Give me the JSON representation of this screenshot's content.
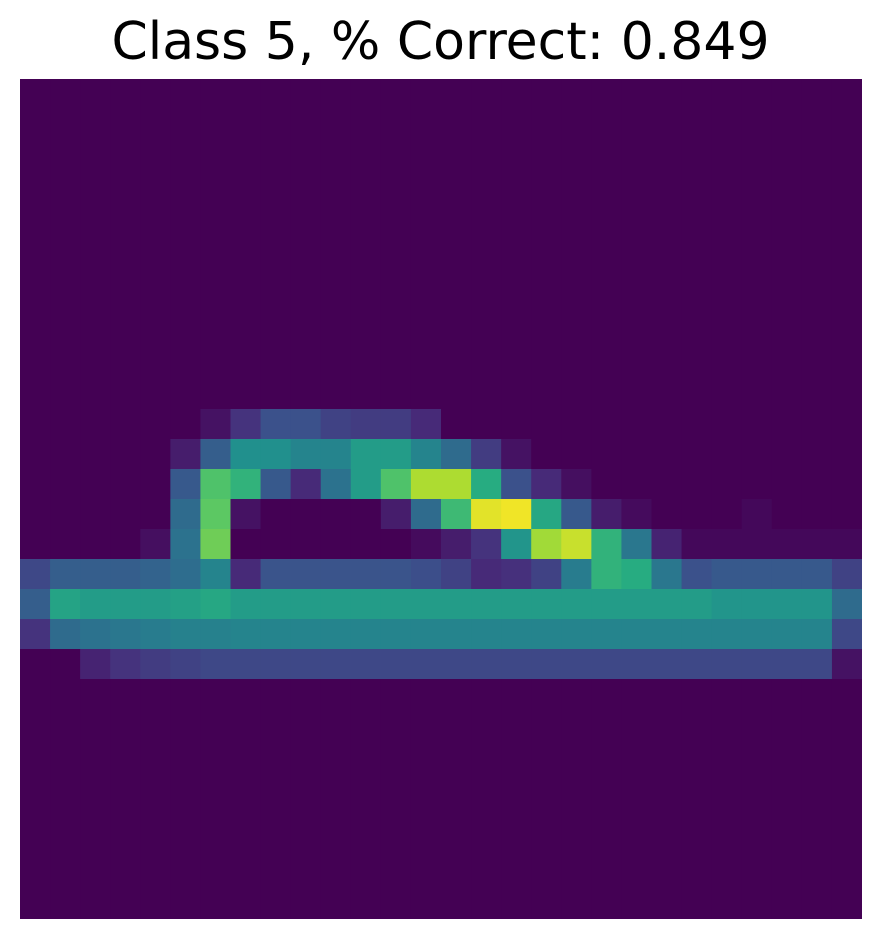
{
  "title": "Class 5, % Correct: 0.849",
  "chart_data": {
    "type": "heatmap",
    "title": "Class 5, % Correct: 0.849",
    "colormap": "viridis",
    "axes_visible": false,
    "rows": 28,
    "cols": 28,
    "value_range": [
      0,
      1
    ],
    "values": [
      [
        0,
        0,
        0,
        0,
        0,
        0,
        0,
        0,
        0,
        0,
        0,
        0,
        0,
        0,
        0,
        0,
        0,
        0,
        0,
        0,
        0,
        0,
        0,
        0,
        0,
        0,
        0,
        0
      ],
      [
        0,
        0,
        0,
        0,
        0,
        0,
        0,
        0,
        0,
        0,
        0,
        0,
        0,
        0,
        0,
        0,
        0,
        0,
        0,
        0,
        0,
        0,
        0,
        0,
        0,
        0,
        0,
        0
      ],
      [
        0,
        0,
        0,
        0,
        0,
        0,
        0,
        0,
        0,
        0,
        0,
        0,
        0,
        0,
        0,
        0,
        0,
        0,
        0,
        0,
        0,
        0,
        0,
        0,
        0,
        0,
        0,
        0
      ],
      [
        0,
        0,
        0,
        0,
        0,
        0,
        0,
        0,
        0,
        0,
        0,
        0,
        0,
        0,
        0,
        0,
        0,
        0,
        0,
        0,
        0,
        0,
        0,
        0,
        0,
        0,
        0,
        0
      ],
      [
        0,
        0,
        0,
        0,
        0,
        0,
        0,
        0,
        0,
        0,
        0,
        0,
        0,
        0,
        0,
        0,
        0,
        0,
        0,
        0,
        0,
        0,
        0,
        0,
        0,
        0,
        0,
        0
      ],
      [
        0,
        0,
        0,
        0,
        0,
        0,
        0,
        0,
        0,
        0,
        0,
        0,
        0,
        0,
        0,
        0,
        0,
        0,
        0,
        0,
        0,
        0,
        0,
        0,
        0,
        0,
        0,
        0
      ],
      [
        0,
        0,
        0,
        0,
        0,
        0,
        0,
        0,
        0,
        0,
        0,
        0,
        0,
        0,
        0,
        0,
        0,
        0,
        0,
        0,
        0,
        0,
        0,
        0,
        0,
        0,
        0,
        0
      ],
      [
        0,
        0,
        0,
        0,
        0,
        0,
        0,
        0,
        0,
        0,
        0,
        0,
        0,
        0,
        0,
        0,
        0,
        0,
        0,
        0,
        0,
        0,
        0,
        0,
        0,
        0,
        0,
        0
      ],
      [
        0,
        0,
        0,
        0,
        0,
        0,
        0,
        0,
        0,
        0,
        0,
        0,
        0,
        0,
        0,
        0,
        0,
        0,
        0,
        0,
        0,
        0,
        0,
        0,
        0,
        0,
        0,
        0
      ],
      [
        0,
        0,
        0,
        0,
        0,
        0,
        0,
        0,
        0,
        0,
        0,
        0,
        0,
        0,
        0,
        0,
        0,
        0,
        0,
        0,
        0,
        0,
        0,
        0,
        0,
        0,
        0,
        0
      ],
      [
        0,
        0,
        0,
        0,
        0,
        0,
        0,
        0,
        0,
        0,
        0,
        0,
        0,
        0,
        0,
        0,
        0,
        0,
        0,
        0,
        0,
        0,
        0,
        0,
        0,
        0,
        0,
        0
      ],
      [
        0,
        0,
        0,
        0,
        0,
        0,
        0.05,
        0.15,
        0.25,
        0.25,
        0.2,
        0.18,
        0.18,
        0.12,
        0,
        0,
        0,
        0,
        0,
        0,
        0,
        0,
        0,
        0,
        0,
        0,
        0,
        0
      ],
      [
        0,
        0,
        0,
        0,
        0,
        0.08,
        0.3,
        0.5,
        0.5,
        0.45,
        0.45,
        0.55,
        0.55,
        0.45,
        0.35,
        0.18,
        0.05,
        0,
        0,
        0,
        0,
        0,
        0,
        0,
        0,
        0,
        0,
        0
      ],
      [
        0,
        0,
        0,
        0,
        0,
        0.28,
        0.72,
        0.65,
        0.28,
        0.12,
        0.38,
        0.55,
        0.72,
        0.88,
        0.88,
        0.62,
        0.25,
        0.12,
        0.04,
        0,
        0,
        0,
        0,
        0,
        0,
        0,
        0,
        0
      ],
      [
        0,
        0,
        0,
        0,
        0,
        0.35,
        0.75,
        0.05,
        0,
        0,
        0,
        0,
        0.08,
        0.35,
        0.68,
        0.96,
        0.98,
        0.6,
        0.28,
        0.08,
        0.03,
        0,
        0,
        0,
        0.02,
        0,
        0,
        0
      ],
      [
        0,
        0,
        0,
        0,
        0.04,
        0.38,
        0.78,
        0,
        0,
        0,
        0,
        0,
        0,
        0.03,
        0.08,
        0.15,
        0.52,
        0.86,
        0.92,
        0.65,
        0.4,
        0.1,
        0.02,
        0.02,
        0.02,
        0.02,
        0.02,
        0.02
      ],
      [
        0.22,
        0.3,
        0.3,
        0.3,
        0.32,
        0.36,
        0.45,
        0.12,
        0.26,
        0.26,
        0.26,
        0.26,
        0.26,
        0.24,
        0.2,
        0.12,
        0.14,
        0.2,
        0.42,
        0.65,
        0.62,
        0.4,
        0.25,
        0.28,
        0.28,
        0.28,
        0.28,
        0.2
      ],
      [
        0.3,
        0.58,
        0.55,
        0.55,
        0.55,
        0.57,
        0.6,
        0.55,
        0.55,
        0.55,
        0.55,
        0.55,
        0.55,
        0.55,
        0.55,
        0.55,
        0.55,
        0.55,
        0.55,
        0.55,
        0.55,
        0.55,
        0.55,
        0.52,
        0.52,
        0.52,
        0.52,
        0.35
      ],
      [
        0.15,
        0.35,
        0.38,
        0.4,
        0.42,
        0.44,
        0.44,
        0.45,
        0.45,
        0.45,
        0.45,
        0.45,
        0.45,
        0.45,
        0.45,
        0.45,
        0.45,
        0.45,
        0.45,
        0.45,
        0.45,
        0.45,
        0.45,
        0.45,
        0.45,
        0.45,
        0.45,
        0.22
      ],
      [
        0,
        0,
        0.1,
        0.15,
        0.18,
        0.2,
        0.22,
        0.22,
        0.22,
        0.22,
        0.22,
        0.22,
        0.22,
        0.22,
        0.22,
        0.22,
        0.22,
        0.22,
        0.22,
        0.22,
        0.22,
        0.22,
        0.22,
        0.22,
        0.22,
        0.22,
        0.22,
        0.05
      ],
      [
        0,
        0,
        0,
        0,
        0,
        0,
        0,
        0,
        0,
        0,
        0,
        0,
        0,
        0,
        0,
        0,
        0,
        0,
        0,
        0,
        0,
        0,
        0,
        0,
        0,
        0,
        0,
        0
      ],
      [
        0,
        0,
        0,
        0,
        0,
        0,
        0,
        0,
        0,
        0,
        0,
        0,
        0,
        0,
        0,
        0,
        0,
        0,
        0,
        0,
        0,
        0,
        0,
        0,
        0,
        0,
        0,
        0
      ],
      [
        0,
        0,
        0,
        0,
        0,
        0,
        0,
        0,
        0,
        0,
        0,
        0,
        0,
        0,
        0,
        0,
        0,
        0,
        0,
        0,
        0,
        0,
        0,
        0,
        0,
        0,
        0,
        0
      ],
      [
        0,
        0,
        0,
        0,
        0,
        0,
        0,
        0,
        0,
        0,
        0,
        0,
        0,
        0,
        0,
        0,
        0,
        0,
        0,
        0,
        0,
        0,
        0,
        0,
        0,
        0,
        0,
        0
      ],
      [
        0,
        0,
        0,
        0,
        0,
        0,
        0,
        0,
        0,
        0,
        0,
        0,
        0,
        0,
        0,
        0,
        0,
        0,
        0,
        0,
        0,
        0,
        0,
        0,
        0,
        0,
        0,
        0
      ],
      [
        0,
        0,
        0,
        0,
        0,
        0,
        0,
        0,
        0,
        0,
        0,
        0,
        0,
        0,
        0,
        0,
        0,
        0,
        0,
        0,
        0,
        0,
        0,
        0,
        0,
        0,
        0,
        0
      ],
      [
        0,
        0,
        0,
        0,
        0,
        0,
        0,
        0,
        0,
        0,
        0,
        0,
        0,
        0,
        0,
        0,
        0,
        0,
        0,
        0,
        0,
        0,
        0,
        0,
        0,
        0,
        0,
        0
      ],
      [
        0,
        0,
        0,
        0,
        0,
        0,
        0,
        0,
        0,
        0,
        0,
        0,
        0,
        0,
        0,
        0,
        0,
        0,
        0,
        0,
        0,
        0,
        0,
        0,
        0,
        0,
        0,
        0
      ]
    ]
  }
}
